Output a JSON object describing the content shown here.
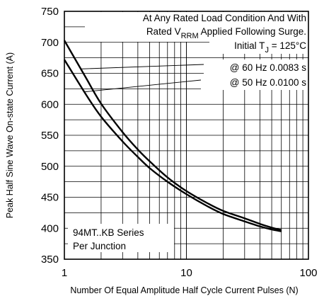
{
  "chart_data": {
    "type": "line",
    "xscale": "log",
    "xlim": [
      1,
      100
    ],
    "ylim": [
      350,
      750
    ],
    "xticks": [
      1,
      10,
      100
    ],
    "yticks": [
      350,
      400,
      450,
      500,
      550,
      600,
      650,
      700,
      750
    ],
    "xtick_labels": [
      "1",
      "10",
      "100"
    ],
    "ytick_labels": [
      "350",
      "400",
      "450",
      "500",
      "550",
      "600",
      "650",
      "700",
      "750"
    ],
    "xlabel": "Number Of Equal Amplitude Half Cycle Current Pulses (N)",
    "ylabel": "Peak Half Sine Wave On-state Current (A)",
    "grid": true,
    "series": [
      {
        "name": "@ 60 Hz 0.0083 s",
        "x": [
          1,
          1.5,
          2,
          3,
          4,
          5,
          7,
          10,
          15,
          20,
          30,
          40,
          50,
          60
        ],
        "y": [
          703,
          643,
          601,
          555,
          527,
          508,
          482,
          460,
          440,
          428,
          416,
          407,
          401,
          397
        ]
      },
      {
        "name": "@ 50 Hz 0.0100 s",
        "x": [
          1,
          1.5,
          2,
          3,
          4,
          5,
          7,
          10,
          15,
          20,
          30,
          40,
          50,
          60
        ],
        "y": [
          672,
          616,
          580,
          540,
          515,
          497,
          475,
          455,
          435,
          423,
          411,
          403,
          398,
          395
        ]
      }
    ],
    "annotations": {
      "condition_line1": "At Any Rated Load Condition And With",
      "condition_line2_pre": "Rated V",
      "condition_line2_sub": "RRM",
      "condition_line2_post": " Applied Following Surge.",
      "tj_pre": "Initial T",
      "tj_sub": "J",
      "tj_post": " = 125°C",
      "series_label_60": "@ 60 Hz 0.0083 s",
      "series_label_50": "@ 50 Hz 0.0100 s",
      "device_line1": "94MT..KB Series",
      "device_line2": "Per Junction"
    }
  }
}
